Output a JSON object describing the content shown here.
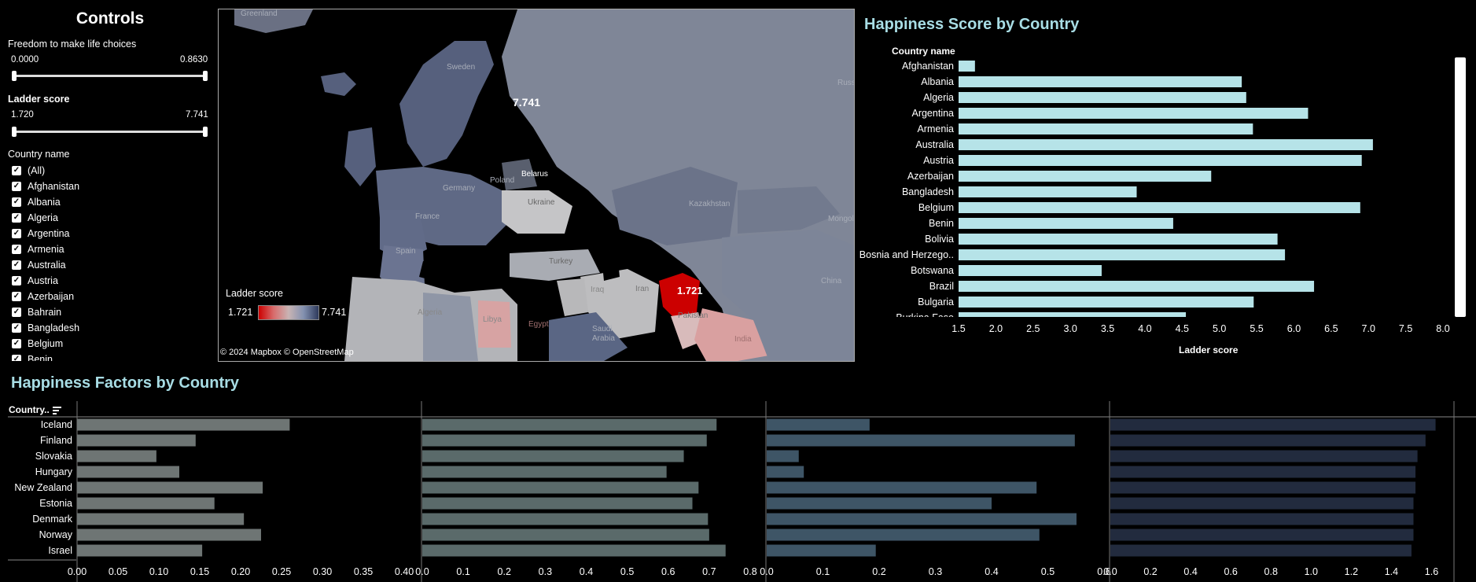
{
  "controls": {
    "title": "Controls",
    "freedom_label": "Freedom to make life choices",
    "freedom_min": "0.0000",
    "freedom_max": "0.8630",
    "ladder_label": "Ladder score",
    "ladder_min": "1.720",
    "ladder_max": "7.741",
    "country_label": "Country name",
    "countries": [
      "(All)",
      "Afghanistan",
      "Albania",
      "Algeria",
      "Argentina",
      "Armenia",
      "Australia",
      "Austria",
      "Azerbaijan",
      "Bahrain",
      "Bangladesh",
      "Belgium",
      "Benin"
    ]
  },
  "map": {
    "country_labels": [
      "Greenland",
      "Sweden",
      "Belarus",
      "Poland",
      "Germany",
      "France",
      "Ukraine",
      "Spain",
      "Turkey",
      "Kazakhstan",
      "Mongolia",
      "Iraq",
      "Iran",
      "Algeria",
      "Libya",
      "Egypt",
      "Saudi Arabia",
      "Pakistan",
      "India",
      "China",
      "Russia"
    ],
    "value_high": "7.741",
    "value_low": "1.721",
    "legend_title": "Ladder score",
    "legend_min": "1.721",
    "legend_max": "7.741",
    "attribution": "© 2024 Mapbox  © OpenStreetMap",
    "colors": {
      "low": "#cc0000",
      "mid": "#c8c8c8",
      "high": "#2e3a5c"
    }
  },
  "score_chart": {
    "title": "Happiness Score by Country",
    "column_header": "Country name",
    "xlabel": "Ladder score",
    "bar_color": "#b6e3e8"
  },
  "factors_chart": {
    "title": "Happiness Factors by Country",
    "column_header": "Country..",
    "colors": [
      "#6e7574",
      "#5a6a6a",
      "#3e5566",
      "#222b3e"
    ]
  },
  "chart_data": [
    {
      "type": "bar",
      "orientation": "horizontal",
      "title": "Happiness Score by Country",
      "xlabel": "Ladder score",
      "ylabel": "Country name",
      "categories": [
        "Afghanistan",
        "Albania",
        "Algeria",
        "Argentina",
        "Armenia",
        "Australia",
        "Austria",
        "Azerbaijan",
        "Bangladesh",
        "Belgium",
        "Benin",
        "Bolivia",
        "Bosnia and Herzego..",
        "Botswana",
        "Brazil",
        "Bulgaria",
        "Burkina Faso"
      ],
      "values": [
        1.72,
        5.3,
        5.36,
        6.19,
        5.45,
        7.06,
        6.91,
        4.89,
        3.89,
        6.89,
        4.38,
        5.78,
        5.88,
        3.42,
        6.27,
        5.46,
        4.55
      ],
      "xlim": [
        1.5,
        8.0
      ],
      "ticks": [
        "1.5",
        "2.0",
        "2.5",
        "3.0",
        "3.5",
        "4.0",
        "4.5",
        "5.0",
        "5.5",
        "6.0",
        "6.5",
        "7.0",
        "7.5",
        "8.0"
      ]
    },
    {
      "type": "bar",
      "orientation": "horizontal",
      "title": "Happiness Factors by Country",
      "ylabel": "Country..",
      "categories": [
        "Iceland",
        "Finland",
        "Slovakia",
        "Hungary",
        "New Zealand",
        "Estonia",
        "Denmark",
        "Norway",
        "Israel"
      ],
      "panels": [
        {
          "values": [
            0.26,
            0.145,
            0.097,
            0.125,
            0.227,
            0.168,
            0.204,
            0.225,
            0.153
          ],
          "xlim": [
            0,
            0.4
          ],
          "ticks": [
            "0.00",
            "0.05",
            "0.10",
            "0.15",
            "0.20",
            "0.25",
            "0.30",
            "0.35",
            "0.40"
          ]
        },
        {
          "values": [
            0.718,
            0.694,
            0.638,
            0.596,
            0.674,
            0.659,
            0.697,
            0.7,
            0.74
          ],
          "xlim": [
            0,
            0.8
          ],
          "ticks": [
            "0.0",
            "0.1",
            "0.2",
            "0.3",
            "0.4",
            "0.5",
            "0.6",
            "0.7",
            "0.8"
          ]
        },
        {
          "values": [
            0.183,
            0.548,
            0.057,
            0.066,
            0.48,
            0.4,
            0.551,
            0.485,
            0.194
          ],
          "xlim": [
            0,
            0.6
          ],
          "ticks": [
            "0.0",
            "0.1",
            "0.2",
            "0.3",
            "0.4",
            "0.5",
            "0.6"
          ]
        },
        {
          "values": [
            1.62,
            1.57,
            1.53,
            1.52,
            1.52,
            1.51,
            1.51,
            1.51,
            1.5
          ],
          "xlim": [
            0,
            1.7
          ],
          "ticks": [
            "0.0",
            "0.2",
            "0.4",
            "0.6",
            "0.8",
            "1.0",
            "1.2",
            "1.4",
            "1.6"
          ]
        }
      ]
    }
  ]
}
